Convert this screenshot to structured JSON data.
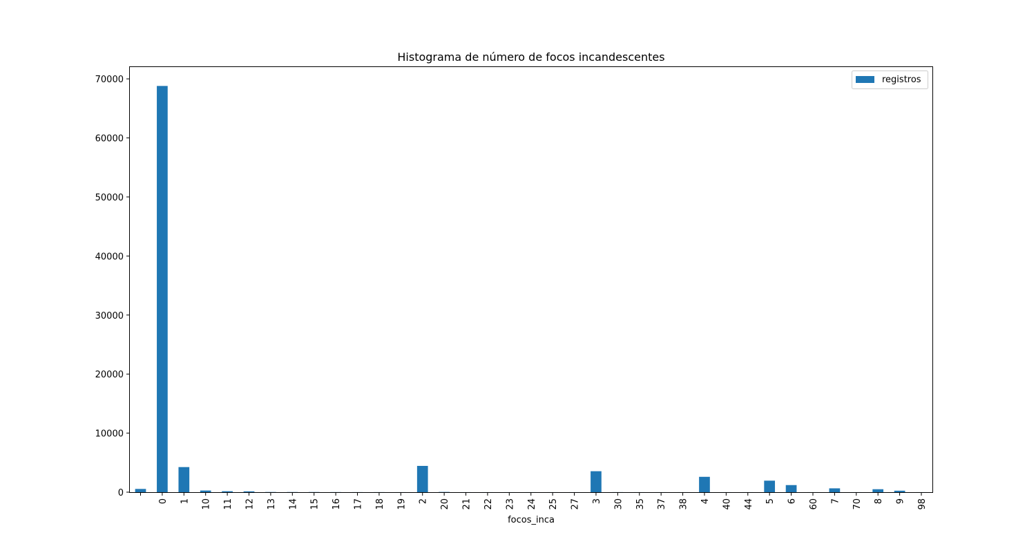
{
  "chart_data": {
    "type": "bar",
    "title": "Histograma de número de focos incandescentes",
    "xlabel": "focos_inca",
    "ylabel": "",
    "ylim": [
      0,
      72000
    ],
    "yticks": [
      0,
      10000,
      20000,
      30000,
      40000,
      50000,
      60000,
      70000
    ],
    "categories": [
      "",
      "0",
      "1",
      "10",
      "11",
      "12",
      "13",
      "14",
      "15",
      "16",
      "17",
      "18",
      "19",
      "2",
      "20",
      "21",
      "22",
      "23",
      "24",
      "25",
      "27",
      "3",
      "30",
      "35",
      "37",
      "38",
      "4",
      "40",
      "44",
      "5",
      "6",
      "60",
      "7",
      "70",
      "8",
      "9",
      "98"
    ],
    "series": [
      {
        "name": "registros",
        "color": "#1f77b4",
        "values": [
          550,
          68800,
          4250,
          280,
          160,
          140,
          30,
          25,
          25,
          15,
          10,
          10,
          5,
          4450,
          40,
          5,
          5,
          5,
          5,
          5,
          5,
          3550,
          10,
          5,
          5,
          5,
          2600,
          5,
          5,
          1950,
          1200,
          5,
          650,
          5,
          500,
          250,
          5
        ]
      }
    ],
    "legend_position": "top-right",
    "grid": false
  }
}
